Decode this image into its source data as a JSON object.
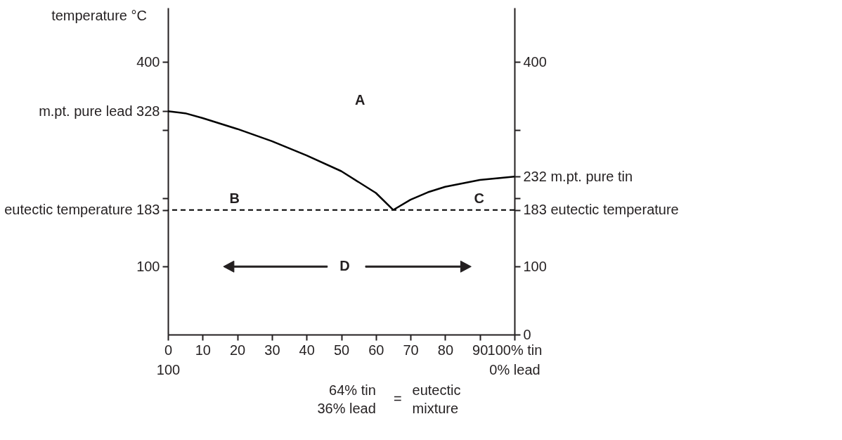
{
  "chart_data": {
    "type": "line",
    "ylabel": "temperature °C",
    "xlim": [
      0,
      100
    ],
    "xticks": [
      0,
      10,
      20,
      30,
      40,
      50,
      60,
      70,
      80,
      90,
      {
        "value": 100,
        "label": "100% tin"
      }
    ],
    "x2lim": [
      100,
      0
    ],
    "x2ticks": [
      100,
      {
        "value": 0,
        "label": "0% lead"
      }
    ],
    "ylim": [
      0,
      480
    ],
    "yticks": [
      100,
      {
        "value": 183,
        "label": "eutectic temperature 183"
      },
      {
        "value": 200,
        "label": null
      },
      {
        "value": 300,
        "label": null
      },
      {
        "value": 328,
        "label": "m.pt. pure lead 328"
      },
      400
    ],
    "y2lim": [
      0,
      480
    ],
    "y2ticks": [
      0,
      100,
      {
        "value": 183,
        "label": "183 eutectic temperature"
      },
      {
        "value": 200,
        "label": null
      },
      {
        "value": 232,
        "label": "232 m.pt. pure tin"
      },
      {
        "value": 300,
        "label": null
      },
      400
    ],
    "grid": false,
    "marker": "none",
    "line_style": "solid",
    "series": [
      {
        "color": "#000000",
        "x": [
          0,
          5,
          10,
          20,
          30,
          40,
          50,
          60,
          65
        ],
        "values": [
          328,
          325,
          318,
          302,
          284,
          263,
          240,
          208,
          183
        ]
      },
      {
        "color": "#000000",
        "x": [
          65,
          70,
          75,
          80,
          90,
          100
        ],
        "values": [
          183,
          198,
          209,
          217,
          227,
          232
        ]
      }
    ],
    "ref_lines": [
      {
        "axis": "y",
        "value": 183,
        "line_style": "dashed",
        "color": "#000000"
      }
    ],
    "annotations": [
      "A",
      "B",
      "C",
      "D",
      "64% tin\n36% lead",
      "=",
      "eutectic\nmixture"
    ]
  }
}
